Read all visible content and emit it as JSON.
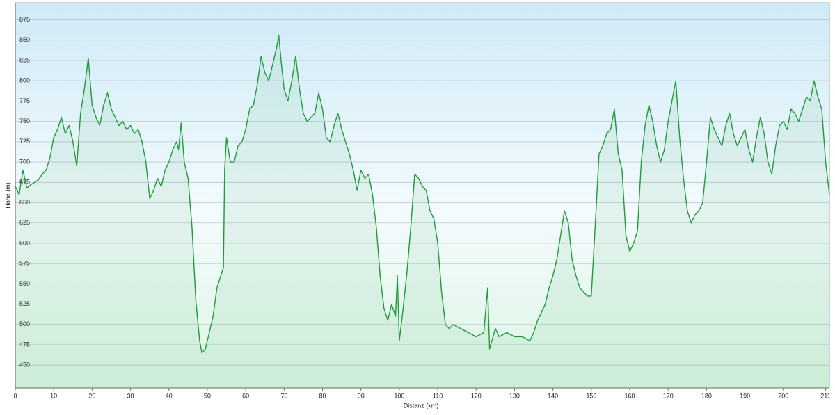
{
  "chart_data": {
    "type": "line",
    "x_label": "Distanz  (km)",
    "y_label": "Höhe (m)",
    "xlim": [
      0,
      212
    ],
    "ylim": [
      422,
      896
    ],
    "xticks": [
      0,
      10,
      20,
      30,
      40,
      50,
      60,
      70,
      80,
      90,
      100,
      110,
      120,
      130,
      140,
      150,
      160,
      170,
      180,
      190,
      200,
      211
    ],
    "yticks": [
      450,
      475,
      500,
      525,
      550,
      575,
      600,
      625,
      650,
      675,
      700,
      725,
      750,
      775,
      800,
      825,
      850,
      875
    ],
    "grid": true,
    "x": [
      0,
      1,
      2,
      3,
      4,
      5,
      6,
      7,
      8,
      9,
      10,
      11,
      12,
      13,
      14,
      15,
      16,
      17,
      18,
      19,
      20,
      21,
      22,
      23,
      24,
      25,
      26,
      27,
      28,
      29,
      30,
      31,
      32,
      33,
      34,
      35,
      36,
      37,
      38,
      39,
      40,
      41,
      42,
      42.5,
      43.2,
      44,
      45,
      46,
      47,
      48,
      48.6,
      49.5,
      50.5,
      51.5,
      52.5,
      53.5,
      54.2,
      54.5,
      55,
      56,
      57,
      58,
      59,
      60,
      61,
      62,
      63,
      64,
      65,
      66,
      67,
      68,
      68.6,
      69.3,
      70,
      71,
      72,
      73,
      74,
      75,
      76,
      77,
      78,
      79,
      80,
      81,
      82,
      83,
      84,
      85,
      86,
      87,
      88,
      89,
      90,
      91,
      92,
      93,
      94,
      95,
      96,
      97,
      98,
      99,
      99.5,
      100,
      101,
      102,
      103,
      104,
      105,
      106,
      107,
      108,
      109,
      110,
      111,
      112,
      113,
      114,
      116,
      118,
      120,
      122,
      123,
      123.5,
      125,
      126,
      128,
      130,
      132,
      134,
      135,
      136,
      137,
      138,
      139,
      140,
      141,
      142,
      143,
      144,
      145,
      146,
      147,
      148,
      149,
      150,
      151,
      152,
      153,
      154,
      155,
      156,
      157,
      158,
      159,
      160,
      161,
      162,
      163,
      164,
      165,
      166,
      167,
      168,
      169,
      170,
      171,
      172,
      173,
      174,
      175,
      176,
      177,
      178,
      179,
      180,
      181,
      182,
      183,
      184,
      185,
      186,
      187,
      188,
      189,
      190,
      191,
      192,
      193,
      194,
      195,
      196,
      197,
      198,
      199,
      200,
      201,
      202,
      203,
      204,
      205,
      206,
      207,
      208,
      209,
      210,
      211,
      212
    ],
    "series": [
      {
        "color": "#1f9a3a",
        "values": [
          670,
          660,
          690,
          668,
          672,
          675,
          678,
          685,
          690,
          705,
          730,
          740,
          755,
          735,
          745,
          725,
          695,
          760,
          790,
          828,
          770,
          755,
          745,
          770,
          785,
          765,
          755,
          745,
          750,
          740,
          745,
          735,
          740,
          725,
          700,
          655,
          665,
          680,
          670,
          690,
          700,
          715,
          725,
          715,
          748,
          700,
          680,
          620,
          530,
          480,
          465,
          470,
          490,
          510,
          545,
          560,
          570,
          690,
          730,
          700,
          700,
          720,
          725,
          740,
          765,
          770,
          795,
          830,
          810,
          800,
          820,
          840,
          856,
          820,
          790,
          775,
          800,
          830,
          790,
          760,
          750,
          755,
          760,
          785,
          765,
          730,
          725,
          745,
          760,
          740,
          725,
          710,
          690,
          665,
          690,
          680,
          685,
          660,
          620,
          560,
          520,
          505,
          525,
          510,
          560,
          480,
          520,
          565,
          620,
          685,
          680,
          670,
          665,
          640,
          630,
          600,
          540,
          500,
          495,
          500,
          495,
          490,
          485,
          490,
          545,
          470,
          495,
          485,
          490,
          485,
          485,
          480,
          490,
          505,
          515,
          525,
          545,
          560,
          580,
          610,
          640,
          625,
          580,
          560,
          545,
          540,
          535,
          535,
          620,
          710,
          720,
          735,
          740,
          765,
          710,
          690,
          610,
          590,
          600,
          615,
          700,
          745,
          770,
          750,
          720,
          700,
          715,
          750,
          775,
          800,
          730,
          680,
          640,
          625,
          635,
          640,
          650,
          700,
          755,
          740,
          730,
          720,
          745,
          760,
          735,
          720,
          730,
          740,
          715,
          700,
          730,
          755,
          735,
          700,
          685,
          720,
          745,
          750,
          740,
          765,
          760,
          750,
          765,
          780,
          775,
          800,
          780,
          765,
          700,
          660
        ]
      }
    ]
  }
}
